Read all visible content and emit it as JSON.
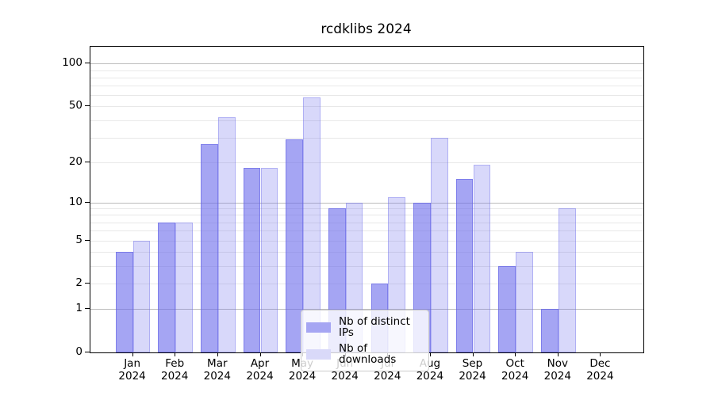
{
  "chart_data": {
    "type": "bar",
    "title": "rcdklibs 2024",
    "categories": [
      "Jan",
      "Feb",
      "Mar",
      "Apr",
      "May",
      "Jun",
      "Jul",
      "Aug",
      "Sep",
      "Oct",
      "Nov",
      "Dec"
    ],
    "category_year": "2024",
    "series": [
      {
        "name": "Nb of distinct IPs",
        "values": [
          4,
          7,
          27,
          18,
          29,
          9,
          2,
          10,
          15,
          3,
          1,
          0
        ]
      },
      {
        "name": "Nb of downloads",
        "values": [
          5,
          7,
          42,
          18,
          58,
          10,
          11,
          30,
          19,
          4,
          9,
          0
        ]
      }
    ],
    "xlabel": "",
    "ylabel": "",
    "yticks": [
      0,
      1,
      2,
      5,
      10,
      20,
      50,
      100
    ],
    "yscale": "log1p",
    "ylim": [
      0,
      131
    ],
    "grid": "horizontal",
    "legend_position": "lower-center"
  },
  "colors": {
    "bar_ips": "#a6a6f3",
    "bar_downloads": "#d9d9f9",
    "grid_major": "#bcbcbc",
    "grid_minor": "#e8e8e8",
    "axis": "#000000",
    "text": "#000000",
    "legend_border": "#cccccc"
  }
}
